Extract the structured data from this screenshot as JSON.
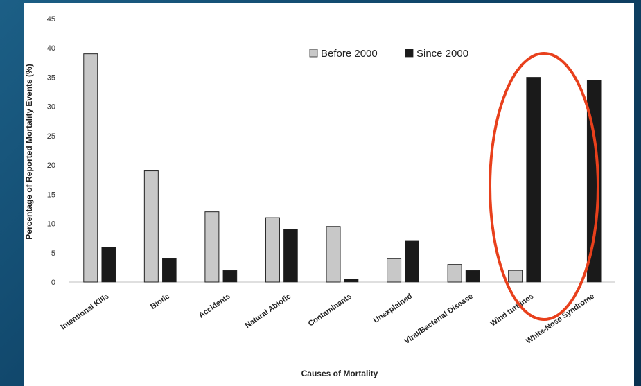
{
  "chart_data": {
    "type": "bar",
    "title": "",
    "xlabel": "Causes of Mortality",
    "ylabel": "Percentage of Reported Mortality Events (%)",
    "ylim": [
      0,
      45
    ],
    "yticks": [
      0,
      5,
      10,
      15,
      20,
      25,
      30,
      35,
      40,
      45
    ],
    "grid": false,
    "legend_position": "top-right",
    "categories": [
      "Intentional Kills",
      "Biotic",
      "Accidents",
      "Natural Abiotic",
      "Contaminants",
      "Unexplained",
      "Viral/Bacterial Disease",
      "Wind turbines",
      "White-Nose Syndrome"
    ],
    "series": [
      {
        "name": "Before 2000",
        "color": "#c8c8c8",
        "values": [
          39,
          19,
          12,
          11,
          9.5,
          4,
          3,
          2,
          0
        ]
      },
      {
        "name": "Since 2000",
        "color": "#1a1a1a",
        "values": [
          6,
          4,
          2,
          9,
          0.5,
          7,
          2,
          35,
          34.5
        ]
      }
    ],
    "annotation": {
      "shape": "ellipse",
      "color": "#e8401c",
      "highlights": "Wind turbines"
    }
  }
}
